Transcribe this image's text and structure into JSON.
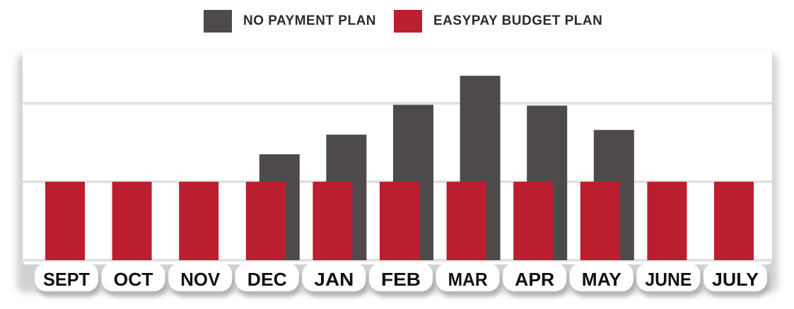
{
  "colors": {
    "no_payment": "#4e4a4b",
    "easypay": "#bb1e2f",
    "panel": "#ffffff",
    "grid": "#e2e2e2",
    "label_text": "#111111"
  },
  "legend": {
    "no_payment_label": "NO PAYMENT PLAN",
    "easypay_label": "EASYPAY BUDGET PLAN"
  },
  "chart_data": {
    "type": "bar",
    "categories": [
      "SEPT",
      "OCT",
      "NOV",
      "DEC",
      "JAN",
      "FEB",
      "MAR",
      "APR",
      "MAY",
      "JUNE",
      "JULY"
    ],
    "series": [
      {
        "name": "NO PAYMENT PLAN",
        "values": [
          0,
          0,
          0,
          1.35,
          1.6,
          1.98,
          2.35,
          1.97,
          1.66,
          0,
          0
        ]
      },
      {
        "name": "EASYPAY BUDGET PLAN",
        "values": [
          1,
          1,
          1,
          1,
          1,
          1,
          1,
          1,
          1,
          1,
          1
        ]
      }
    ],
    "ylim": [
      0,
      2.6
    ],
    "grid": true,
    "legend_position": "top-center"
  }
}
